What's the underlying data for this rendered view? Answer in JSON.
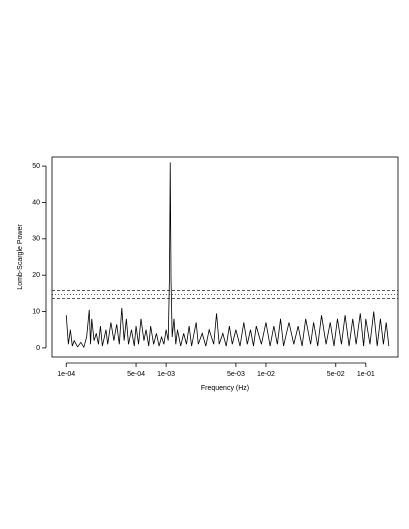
{
  "chart_data": {
    "type": "line",
    "xlabel": "Frequency (Hz)",
    "ylabel": "Lomb-Scargle Power",
    "log_x": true,
    "color": "#000000",
    "x": [
      0.0001,
      0.000105,
      0.00011,
      0.000115,
      0.00012,
      0.00013,
      0.00014,
      0.00015,
      0.00016,
      0.00017,
      0.000175,
      0.00018,
      0.00019,
      0.0002,
      0.00021,
      0.00022,
      0.00023,
      0.00025,
      0.00026,
      0.00028,
      0.0003,
      0.00032,
      0.00034,
      0.00036,
      0.00038,
      0.0004,
      0.00042,
      0.00045,
      0.00048,
      0.0005,
      0.00053,
      0.00056,
      0.0006,
      0.00063,
      0.00067,
      0.0007,
      0.00075,
      0.0008,
      0.00085,
      0.0009,
      0.00095,
      0.001,
      0.00105,
      0.00108,
      0.0011,
      0.00112,
      0.00115,
      0.0012,
      0.00125,
      0.0013,
      0.0014,
      0.0015,
      0.0016,
      0.0017,
      0.0018,
      0.002,
      0.0021,
      0.0023,
      0.0025,
      0.0027,
      0.003,
      0.0032,
      0.0034,
      0.0037,
      0.004,
      0.0043,
      0.0046,
      0.005,
      0.0055,
      0.006,
      0.0065,
      0.007,
      0.0075,
      0.008,
      0.009,
      0.01,
      0.011,
      0.012,
      0.013,
      0.014,
      0.015,
      0.017,
      0.019,
      0.021,
      0.023,
      0.025,
      0.028,
      0.03,
      0.033,
      0.036,
      0.04,
      0.044,
      0.048,
      0.052,
      0.057,
      0.062,
      0.068,
      0.074,
      0.08,
      0.088,
      0.095,
      0.1,
      0.11,
      0.12,
      0.13,
      0.14,
      0.15,
      0.16,
      0.17
    ],
    "values": [
      9,
      1,
      5,
      0.5,
      2,
      0.3,
      1.5,
      0.2,
      3,
      10.5,
      1,
      8,
      2,
      4,
      1,
      6,
      0.5,
      5,
      1,
      7,
      2,
      6.5,
      1,
      11,
      2,
      8,
      1,
      5,
      0.5,
      6,
      1,
      8,
      2,
      5,
      0.5,
      6,
      1,
      4,
      0.5,
      3,
      1,
      5,
      2,
      19,
      51,
      19,
      3,
      8,
      1,
      5,
      0.5,
      4,
      1,
      6,
      0.5,
      7,
      1,
      4,
      0.5,
      5,
      1,
      9.5,
      1,
      4,
      0.5,
      6,
      1,
      5,
      0.5,
      7,
      1,
      5,
      0.5,
      6,
      1,
      7,
      0.5,
      6,
      1,
      8,
      0.5,
      7,
      1,
      6,
      0.5,
      8,
      1,
      7,
      0.5,
      9,
      1,
      7,
      0.5,
      8,
      1,
      9,
      0.5,
      8,
      1,
      9.5,
      0.5,
      8,
      1,
      10,
      0.5,
      8,
      1,
      7,
      0.5
    ],
    "xlim": [
      7.2e-05,
      0.21
    ],
    "xticks": [
      {
        "value": 0.0001,
        "label": "1e-04"
      },
      {
        "value": 0.0005,
        "label": "5e-04"
      },
      {
        "value": 0.001,
        "label": "1e-03"
      },
      {
        "value": 0.005,
        "label": "5e-03"
      },
      {
        "value": 0.01,
        "label": "1e-02"
      },
      {
        "value": 0.05,
        "label": "5e-02"
      },
      {
        "value": 0.1,
        "label": "1e-01"
      }
    ],
    "ylim": [
      -2.5,
      52.5
    ],
    "yticks": [
      0,
      10,
      20,
      30,
      40,
      50
    ],
    "reference_lines": [
      {
        "value": 15.8,
        "style": "dashed"
      },
      {
        "value": 14.7,
        "style": "dotted"
      },
      {
        "value": 13.6,
        "style": "dashed"
      }
    ]
  }
}
